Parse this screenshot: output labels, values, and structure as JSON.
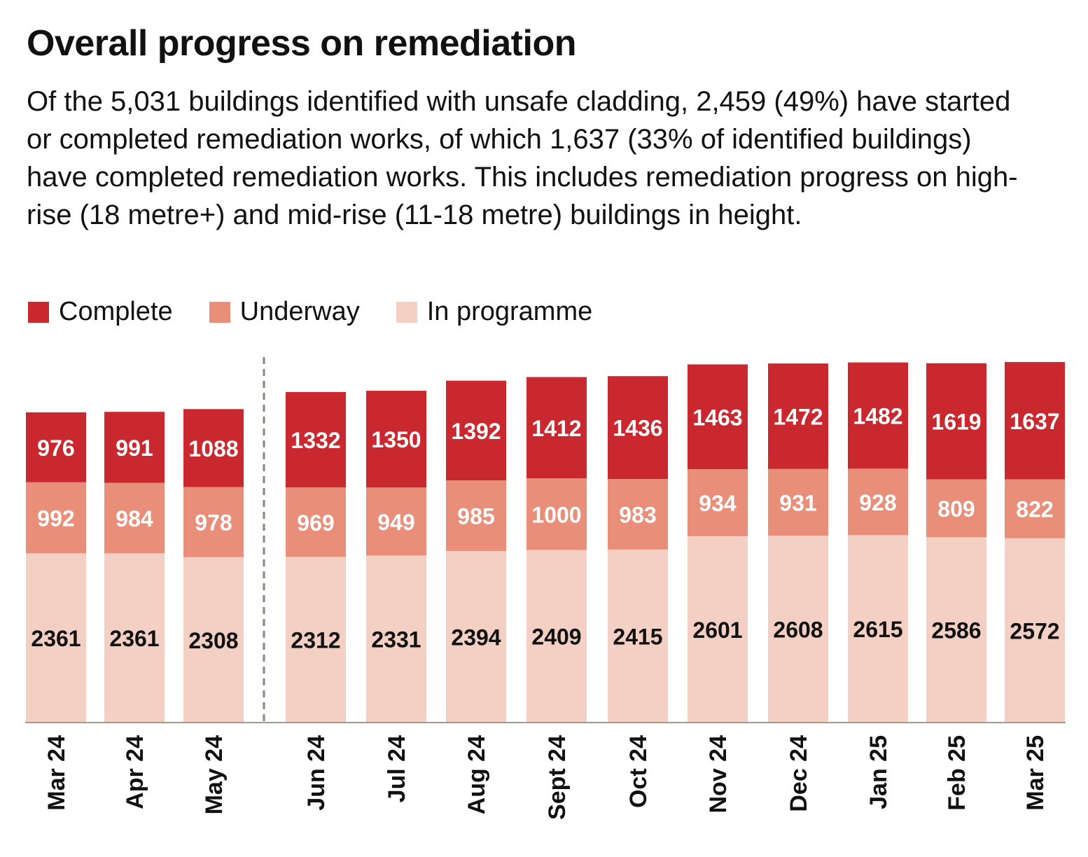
{
  "title": "Overall progress on remediation",
  "subtitle": "Of the 5,031 buildings identified with unsafe cladding, 2,459 (49%) have started or completed remediation works, of which 1,637 (33% of identified buildings) have completed remediation works. This includes remediation progress on high-rise (18 metre+) and mid-rise (11-18 metre) buildings in height.",
  "legend": [
    {
      "label": "Complete",
      "color": "#c8282e"
    },
    {
      "label": "Underway",
      "color": "#e88e79"
    },
    {
      "label": "In programme",
      "color": "#f4d0c4"
    }
  ],
  "chart_data": {
    "type": "bar",
    "stacked": true,
    "categories": [
      "Mar 24",
      "Apr 24",
      "May 24",
      "Jun 24",
      "Jul 24",
      "Aug 24",
      "Sept 24",
      "Oct 24",
      "Nov 24",
      "Dec 24",
      "Jan 25",
      "Feb 25",
      "Mar 25"
    ],
    "series": [
      {
        "name": "In programme",
        "color": "#f4d0c4",
        "label_color": "#111111",
        "values": [
          2361,
          2361,
          2308,
          2312,
          2331,
          2394,
          2409,
          2415,
          2601,
          2608,
          2615,
          2586,
          2572
        ]
      },
      {
        "name": "Underway",
        "color": "#e88e79",
        "label_color": "#ffffff",
        "values": [
          992,
          984,
          978,
          969,
          949,
          985,
          1000,
          983,
          934,
          931,
          928,
          809,
          822
        ]
      },
      {
        "name": "Complete",
        "color": "#c8282e",
        "label_color": "#ffffff",
        "values": [
          976,
          991,
          1088,
          1332,
          1350,
          1392,
          1412,
          1436,
          1463,
          1472,
          1482,
          1619,
          1637
        ]
      }
    ],
    "ylim": [
      0,
      5100
    ],
    "divider_after_category": "May 24",
    "grid": false,
    "legend_position": "top-left"
  }
}
